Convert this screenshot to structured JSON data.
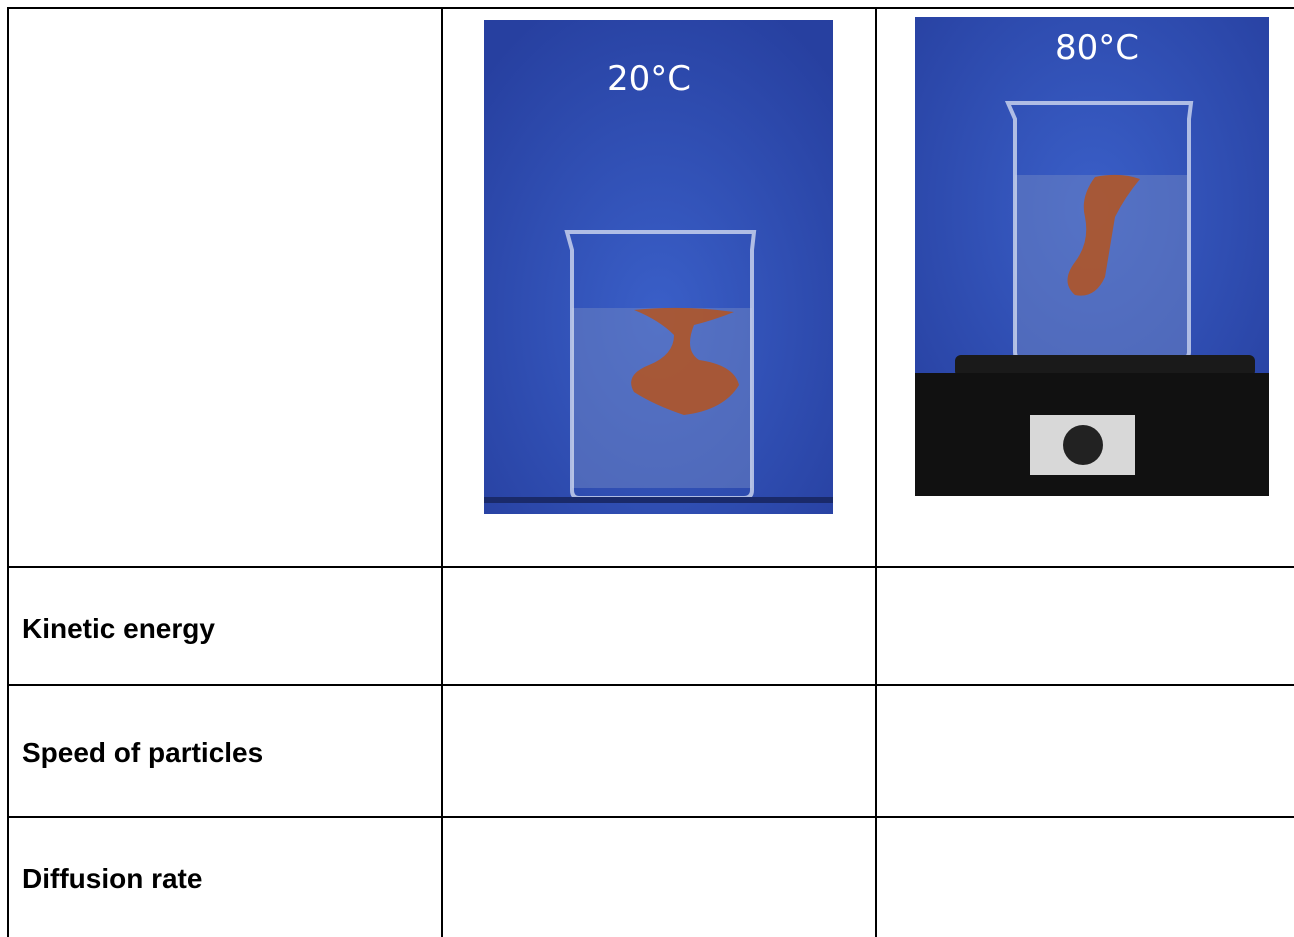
{
  "images": [
    {
      "label": "20°C"
    },
    {
      "label": "80°C"
    }
  ],
  "table": {
    "row_labels": [
      "Kinetic energy",
      "Speed of particles",
      "Diffusion rate"
    ]
  }
}
